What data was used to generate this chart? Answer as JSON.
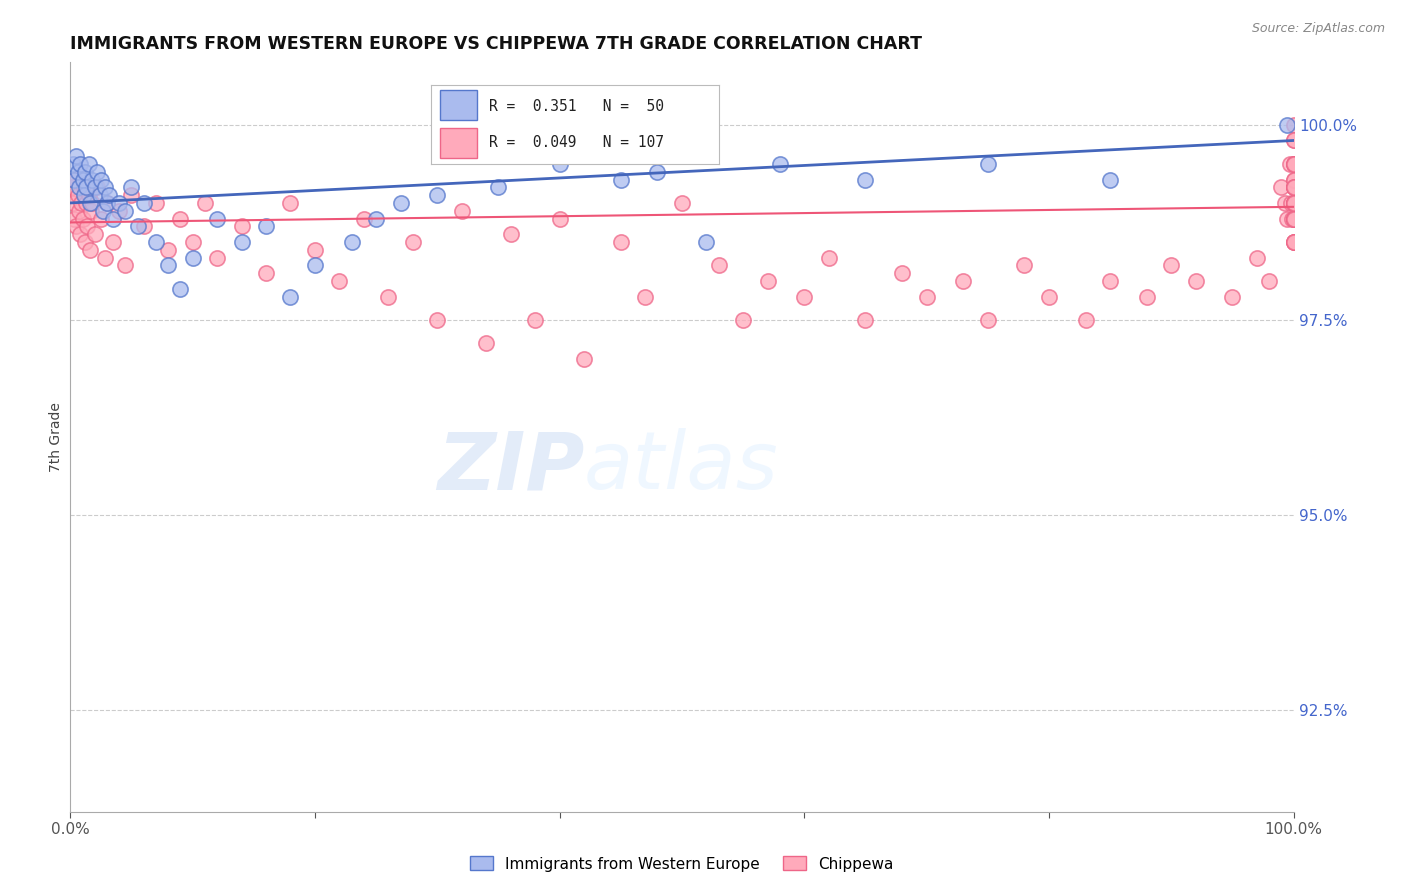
{
  "title": "IMMIGRANTS FROM WESTERN EUROPE VS CHIPPEWA 7TH GRADE CORRELATION CHART",
  "source": "Source: ZipAtlas.com",
  "ylabel": "7th Grade",
  "right_yticks": [
    100.0,
    97.5,
    95.0,
    92.5
  ],
  "right_ytick_labels": [
    "100.0%",
    "97.5%",
    "95.0%",
    "92.5%"
  ],
  "xmin": 0.0,
  "xmax": 100.0,
  "ymin": 91.2,
  "ymax": 100.8,
  "blue_r": 0.351,
  "blue_n": 50,
  "pink_r": 0.049,
  "pink_n": 107,
  "blue_color": "#AABBEE",
  "pink_color": "#FFAABB",
  "blue_edge_color": "#5577CC",
  "pink_edge_color": "#EE6688",
  "blue_line_color": "#4466BB",
  "pink_line_color": "#EE5577",
  "legend_label_blue": "Immigrants from Western Europe",
  "legend_label_pink": "Chippewa",
  "watermark_zip": "ZIP",
  "watermark_atlas": "atlas",
  "blue_scatter_x": [
    0.2,
    0.3,
    0.5,
    0.6,
    0.7,
    0.8,
    1.0,
    1.1,
    1.2,
    1.3,
    1.5,
    1.6,
    1.8,
    2.0,
    2.2,
    2.4,
    2.5,
    2.7,
    2.8,
    3.0,
    3.2,
    3.5,
    4.0,
    4.5,
    5.0,
    5.5,
    6.0,
    7.0,
    8.0,
    9.0,
    10.0,
    12.0,
    14.0,
    16.0,
    18.0,
    20.0,
    23.0,
    25.0,
    27.0,
    30.0,
    35.0,
    40.0,
    45.0,
    48.0,
    52.0,
    58.0,
    65.0,
    75.0,
    85.0,
    99.5
  ],
  "blue_scatter_y": [
    99.5,
    99.3,
    99.6,
    99.4,
    99.2,
    99.5,
    99.3,
    99.1,
    99.4,
    99.2,
    99.5,
    99.0,
    99.3,
    99.2,
    99.4,
    99.1,
    99.3,
    98.9,
    99.2,
    99.0,
    99.1,
    98.8,
    99.0,
    98.9,
    99.2,
    98.7,
    99.0,
    98.5,
    98.2,
    97.9,
    98.3,
    98.8,
    98.5,
    98.7,
    97.8,
    98.2,
    98.5,
    98.8,
    99.0,
    99.1,
    99.2,
    99.5,
    99.3,
    99.4,
    98.5,
    99.5,
    99.3,
    99.5,
    99.3,
    100.0
  ],
  "pink_scatter_x": [
    0.1,
    0.2,
    0.3,
    0.4,
    0.5,
    0.6,
    0.7,
    0.8,
    0.9,
    1.0,
    1.1,
    1.2,
    1.3,
    1.4,
    1.5,
    1.6,
    1.7,
    1.8,
    2.0,
    2.2,
    2.5,
    2.8,
    3.0,
    3.5,
    4.0,
    4.5,
    5.0,
    6.0,
    7.0,
    8.0,
    9.0,
    10.0,
    11.0,
    12.0,
    14.0,
    16.0,
    18.0,
    20.0,
    22.0,
    24.0,
    26.0,
    28.0,
    30.0,
    32.0,
    34.0,
    36.0,
    38.0,
    40.0,
    42.0,
    45.0,
    47.0,
    50.0,
    53.0,
    55.0,
    57.0,
    60.0,
    62.0,
    65.0,
    68.0,
    70.0,
    73.0,
    75.0,
    78.0,
    80.0,
    83.0,
    85.0,
    88.0,
    90.0,
    92.0,
    95.0,
    97.0,
    98.0,
    99.0,
    99.3,
    99.5,
    99.7,
    99.8,
    99.9,
    100.0,
    100.0,
    100.0,
    100.0,
    100.0,
    100.0,
    100.0,
    100.0,
    100.0,
    100.0,
    100.0,
    100.0,
    100.0,
    100.0,
    100.0,
    100.0,
    100.0,
    100.0,
    100.0,
    100.0,
    100.0,
    100.0,
    100.0,
    100.0,
    100.0,
    100.0,
    100.0,
    100.0,
    100.0
  ],
  "pink_scatter_y": [
    99.2,
    99.0,
    98.8,
    99.3,
    98.7,
    99.1,
    98.9,
    98.6,
    99.0,
    98.8,
    99.2,
    98.5,
    99.0,
    98.7,
    99.1,
    98.4,
    98.9,
    99.0,
    98.6,
    99.2,
    98.8,
    98.3,
    99.0,
    98.5,
    98.9,
    98.2,
    99.1,
    98.7,
    99.0,
    98.4,
    98.8,
    98.5,
    99.0,
    98.3,
    98.7,
    98.1,
    99.0,
    98.4,
    98.0,
    98.8,
    97.8,
    98.5,
    97.5,
    98.9,
    97.2,
    98.6,
    97.5,
    98.8,
    97.0,
    98.5,
    97.8,
    99.0,
    98.2,
    97.5,
    98.0,
    97.8,
    98.3,
    97.5,
    98.1,
    97.8,
    98.0,
    97.5,
    98.2,
    97.8,
    97.5,
    98.0,
    97.8,
    98.2,
    98.0,
    97.8,
    98.3,
    98.0,
    99.2,
    99.0,
    98.8,
    99.5,
    99.0,
    98.8,
    100.0,
    99.8,
    99.5,
    99.2,
    98.8,
    99.0,
    99.3,
    99.5,
    98.8,
    99.0,
    99.2,
    99.5,
    99.8,
    98.5,
    99.0,
    98.8,
    99.2,
    98.5,
    99.0,
    98.8,
    99.3,
    98.5,
    99.0,
    99.2,
    98.8,
    99.5,
    99.0,
    98.5,
    99.2
  ]
}
